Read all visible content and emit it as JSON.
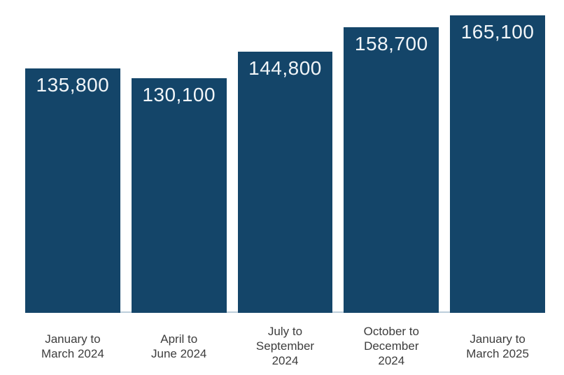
{
  "chart_data": {
    "type": "bar",
    "title": "",
    "xlabel": "",
    "ylabel": "",
    "categories": [
      "January to March 2024",
      "April to June 2024",
      "July to September 2024",
      "October to December 2024",
      "January to March 2025"
    ],
    "category_lines": [
      [
        "January to",
        "March 2024"
      ],
      [
        "April to",
        "June 2024"
      ],
      [
        "July to",
        "September",
        "2024"
      ],
      [
        "October to",
        "December",
        "2024"
      ],
      [
        "January to",
        "March 2025"
      ]
    ],
    "values": [
      135800,
      130100,
      144800,
      158700,
      165100
    ],
    "value_labels": [
      "135,800",
      "130,100",
      "144,800",
      "158,700",
      "165,100"
    ],
    "ylim": [
      0,
      165100
    ],
    "grid": false,
    "legend": false,
    "bar_color": "#144569",
    "value_label_color": "#f1f5f8",
    "category_label_color": "#3d3d3d",
    "axis_line_color": "#bccedb"
  }
}
